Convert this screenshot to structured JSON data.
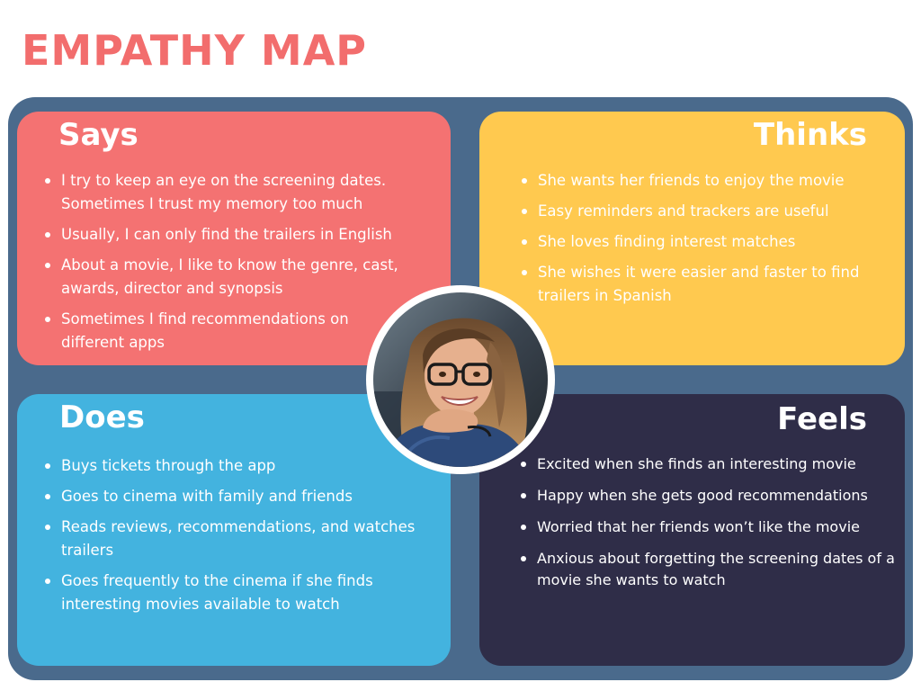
{
  "title": "EMPATHY MAP",
  "colors": {
    "title": "#f26d6d",
    "board": "#4a6a8c",
    "says": "#f47272",
    "thinks": "#ffc94f",
    "does": "#43b3df",
    "feels": "#2f2d48"
  },
  "says": {
    "heading": "Says",
    "items": [
      "I try to keep an eye on the screening dates. Sometimes I trust my memory too much",
      "Usually, I can only find the trailers in English",
      "About a movie, I like to know the genre, cast, awards, director and synopsis",
      "Sometimes I find recommendations on different apps"
    ]
  },
  "thinks": {
    "heading": "Thinks",
    "items": [
      "She wants her friends to enjoy the movie",
      "Easy reminders and trackers are useful",
      "She loves finding interest matches",
      "She wishes it were easier and faster to find trailers in Spanish"
    ]
  },
  "does": {
    "heading": "Does",
    "items": [
      "Buys tickets through the app",
      "Goes to cinema with family and friends",
      "Reads reviews, recommendations, and watches trailers",
      "Goes frequently to the cinema if she finds interesting movies available to watch"
    ]
  },
  "feels": {
    "heading": "Feels",
    "items": [
      "Excited when she finds an interesting movie",
      "Happy when she gets good recommendations",
      "Worried that her friends won’t like the movie",
      "Anxious about forgetting the screening dates of a movie she wants to watch"
    ]
  },
  "avatar": {
    "icon": "user-photo"
  }
}
